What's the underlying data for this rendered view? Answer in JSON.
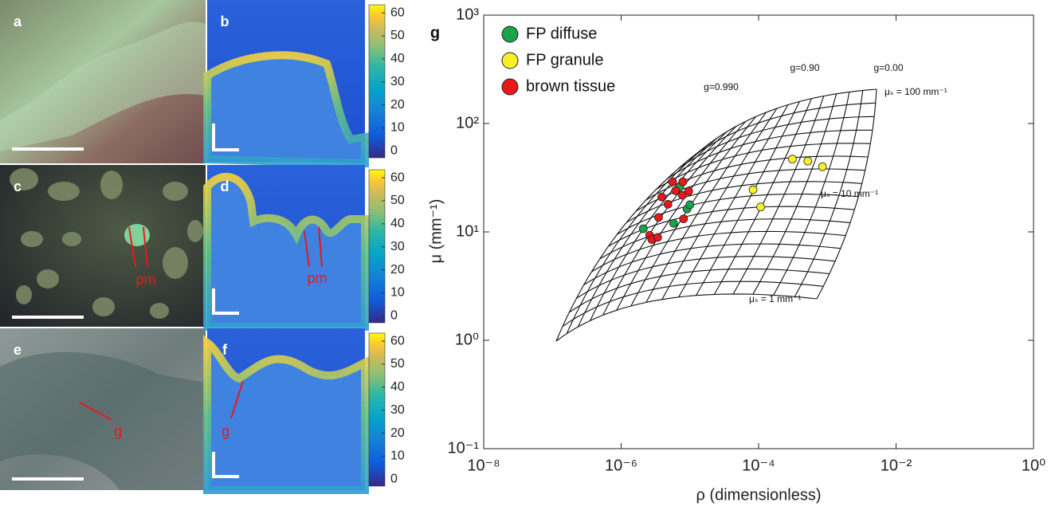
{
  "panels": [
    {
      "label": "a"
    },
    {
      "label": "b",
      "colorbar_lim": [
        -3,
        63.5
      ],
      "colorbar_ticks": [
        0,
        10,
        20,
        30,
        40,
        50,
        60
      ]
    },
    {
      "label": "c",
      "annotation": "pm"
    },
    {
      "label": "d",
      "annotation": "pm",
      "colorbar_lim": [
        -3,
        63.5
      ],
      "colorbar_ticks": [
        0,
        10,
        20,
        30,
        40,
        50,
        60
      ]
    },
    {
      "label": "e",
      "annotation": "g"
    },
    {
      "label": "f",
      "annotation": "g",
      "colorbar_lim": [
        -3,
        63.5
      ],
      "colorbar_ticks": [
        0,
        10,
        20,
        30,
        40,
        50,
        60
      ]
    }
  ],
  "chart_data": {
    "type": "scatter",
    "panel_label": "g",
    "x_label": "ρ (dimensionless)",
    "y_label": "μ (mm⁻¹)",
    "x_log": true,
    "y_log": true,
    "xlim": [
      1e-08,
      1
    ],
    "ylim": [
      0.1,
      1000
    ],
    "xticks": [
      {
        "value": 1e-08,
        "label": "10⁻⁸"
      },
      {
        "value": 1e-06,
        "label": "10⁻⁶"
      },
      {
        "value": 0.0001,
        "label": "10⁻⁴"
      },
      {
        "value": 0.01,
        "label": "10⁻²"
      },
      {
        "value": 1,
        "label": "10⁰"
      }
    ],
    "yticks": [
      {
        "value": 0.1,
        "label": "10⁻¹"
      },
      {
        "value": 1,
        "label": "10⁰"
      },
      {
        "value": 10,
        "label": "10¹"
      },
      {
        "value": 100,
        "label": "10²"
      },
      {
        "value": 1000,
        "label": "10³"
      }
    ],
    "legend": "top-left",
    "annotations": [
      "g=0.990",
      "g=0.90",
      "g=0.00",
      "μₛ = 100 mm⁻¹",
      "μₛ = 10 mm⁻¹",
      "μₛ = 1 mm⁻¹"
    ],
    "series": [
      {
        "name": "FP diffuse",
        "color": "#1aa34a",
        "x": [
          2.1e-06,
          5.8e-06,
          7.1e-06,
          9.1e-06,
          1e-05
        ],
        "values": [
          10.7,
          12,
          26,
          16.3,
          17.8
        ]
      },
      {
        "name": "FP granule",
        "color": "#f5f02a",
        "x": [
          8.3e-05,
          0.000107,
          0.00031,
          0.00052,
          0.00085
        ],
        "values": [
          24.5,
          17,
          47,
          45,
          40
        ]
      },
      {
        "name": "brown tissue",
        "color": "#e8191c",
        "x": [
          2.6e-06,
          2.8e-06,
          3.4e-06,
          3.5e-06,
          3.9e-06,
          4.8e-06,
          5.6e-06,
          6.2e-06,
          7.9e-06,
          7.8e-06,
          9.6e-06,
          8.1e-06
        ],
        "values": [
          9.3,
          8.5,
          8.9,
          13.6,
          21,
          18,
          29,
          24,
          29,
          21.8,
          23.7,
          13.2
        ]
      }
    ]
  }
}
